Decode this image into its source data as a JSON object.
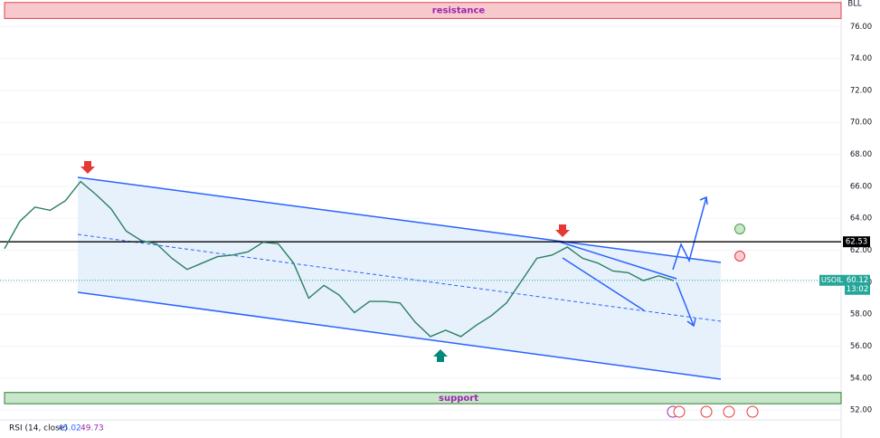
{
  "chart_data": {
    "type": "line",
    "currency": "BLL",
    "color": "#2a7f62",
    "values": [
      62.1,
      63.8,
      64.7,
      64.5,
      65.1,
      66.3,
      65.5,
      64.6,
      63.2,
      62.6,
      62.4,
      61.5,
      60.8,
      61.2,
      61.6,
      61.7,
      61.9,
      62.5,
      62.4,
      61.2,
      59.0,
      59.8,
      59.2,
      58.1,
      58.8,
      58.8,
      58.7,
      57.5,
      56.6,
      57.0,
      56.6,
      57.3,
      57.9,
      58.7,
      60.1,
      61.5,
      61.7,
      62.2,
      61.5,
      61.2,
      60.7,
      60.6,
      60.1,
      60.4,
      60.1
    ],
    "ylim": [
      51.5,
      77.6
    ],
    "yticks": [
      {
        "value": 52,
        "label": "52.00"
      },
      {
        "value": 54,
        "label": "54.00"
      },
      {
        "value": 56,
        "label": "56.00"
      },
      {
        "value": 58,
        "label": "58.00"
      },
      {
        "value": 60,
        "label": "60.00"
      },
      {
        "value": 62,
        "label": "62.00"
      },
      {
        "value": 64,
        "label": "64.00"
      },
      {
        "value": 66,
        "label": "66.00"
      },
      {
        "value": 68,
        "label": "68.00"
      },
      {
        "value": 70,
        "label": "70.00"
      },
      {
        "value": 72,
        "label": "72.00"
      },
      {
        "value": 74,
        "label": "74.00"
      },
      {
        "value": 76,
        "label": "76.00"
      }
    ],
    "zones": [
      {
        "label": "resistance",
        "from": 76.5,
        "to": 77.5,
        "color": "#f7c9cc",
        "border": "#e0454f",
        "text_color": "#9c27b0"
      },
      {
        "label": "support",
        "from": 52.4,
        "to": 53.1,
        "color": "#c8e6c9",
        "border": "#2e7d32",
        "text_color": "#9c27b0"
      }
    ],
    "level": 62.53,
    "symbol": "USOIL",
    "last_price": 60.12,
    "countdown": "13:02",
    "indicator": {
      "name": "RSI (14, close)",
      "values": [
        "45.02",
        "49.73"
      ]
    }
  }
}
